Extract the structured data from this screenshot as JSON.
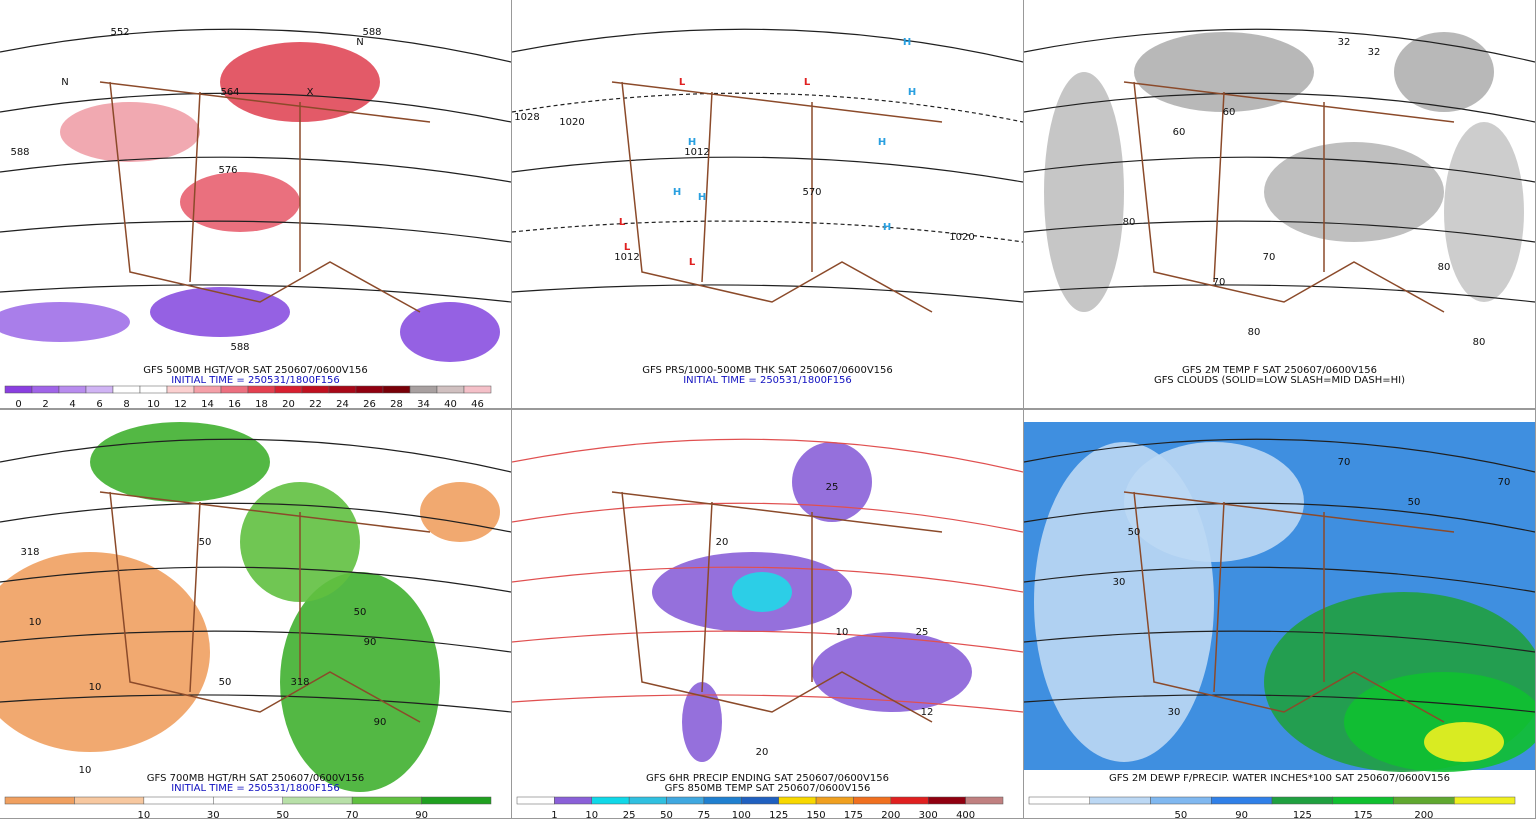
{
  "panels": [
    {
      "caption": [
        "GFS 500MB HGT/VOR SAT 250607/0600V156",
        "INITIAL TIME = 250531/1800F156"
      ],
      "map_labels": [
        "552",
        "564",
        "576",
        "588",
        "588",
        "588",
        "N",
        "N",
        "X"
      ],
      "colorbar": {
        "colors": [
          "#8a3fe0",
          "#a064e8",
          "#b88cee",
          "#d0b4f4",
          "#ffffff",
          "#ffffff",
          "#fbd0d0",
          "#f4a0a8",
          "#ec7080",
          "#e44050",
          "#d82030",
          "#c01020",
          "#a80818",
          "#900010",
          "#780008",
          "#a8a0a0",
          "#d0c0c0",
          "#f4c0c8"
        ],
        "labels": [
          0,
          2,
          4,
          6,
          8,
          10,
          12,
          14,
          16,
          18,
          20,
          22,
          24,
          26,
          28,
          34,
          40,
          46
        ]
      }
    },
    {
      "caption": [
        "GFS PRS/1000-500MB THK SAT 250607/0600V156",
        "INITIAL TIME = 250531/1800F156"
      ],
      "map_labels": [
        "L",
        "L",
        "L",
        "L",
        "L",
        "H",
        "H",
        "H",
        "H",
        "H",
        "H",
        "H",
        "1020",
        "1020",
        "1012",
        "1012",
        "1028",
        "570"
      ]
    },
    {
      "caption": [
        "GFS 2M TEMP F SAT 250607/0600V156",
        "GFS CLOUDS (SOLID=LOW SLASH=MID DASH=HI)"
      ],
      "map_labels": [
        "32",
        "32",
        "60",
        "60",
        "70",
        "70",
        "80",
        "80",
        "80",
        "80"
      ]
    },
    {
      "caption": [
        "GFS 700MB HGT/RH SAT 250607/0600V156",
        "INITIAL TIME = 250531/1800F156"
      ],
      "map_labels": [
        "10",
        "10",
        "10",
        "50",
        "50",
        "50",
        "90",
        "90",
        "318",
        "318"
      ],
      "colorbar": {
        "colors": [
          "#f0a060",
          "#f7c8a0",
          "#ffffff",
          "#ffffff",
          "#b8e0a8",
          "#60c040",
          "#20a020"
        ],
        "labels": [
          10,
          30,
          50,
          70,
          90
        ]
      }
    },
    {
      "caption": [
        "GFS 6HR PRECIP ENDING SAT 250607/0600V156",
        "GFS 850MB TEMP SAT 250607/0600V156"
      ],
      "map_labels": [
        "20",
        "20",
        "25",
        "25",
        "10",
        "12"
      ],
      "colorbar": {
        "colors": [
          "#ffffff",
          "#8a60d8",
          "#10d8e8",
          "#30c0e0",
          "#40a8e0",
          "#2080d0",
          "#2060c0",
          "#f8d800",
          "#f0a020",
          "#f07020",
          "#e02020",
          "#900010",
          "#c08080"
        ],
        "labels": [
          1,
          10,
          25,
          50,
          75,
          100,
          125,
          150,
          175,
          200,
          300,
          400
        ]
      }
    },
    {
      "caption": [
        "GFS 2M DEWP F/PRECIP. WATER INCHES*100 SAT 250607/0600V156"
      ],
      "map_labels": [
        "30",
        "30",
        "50",
        "50",
        "70",
        "70"
      ],
      "colorbar": {
        "colors": [
          "#ffffff",
          "#bcd8f4",
          "#80b8f0",
          "#3080e8",
          "#20a040",
          "#10c030",
          "#60a830",
          "#f0f020"
        ],
        "labels": [
          50,
          90,
          125,
          175,
          200
        ]
      }
    }
  ]
}
